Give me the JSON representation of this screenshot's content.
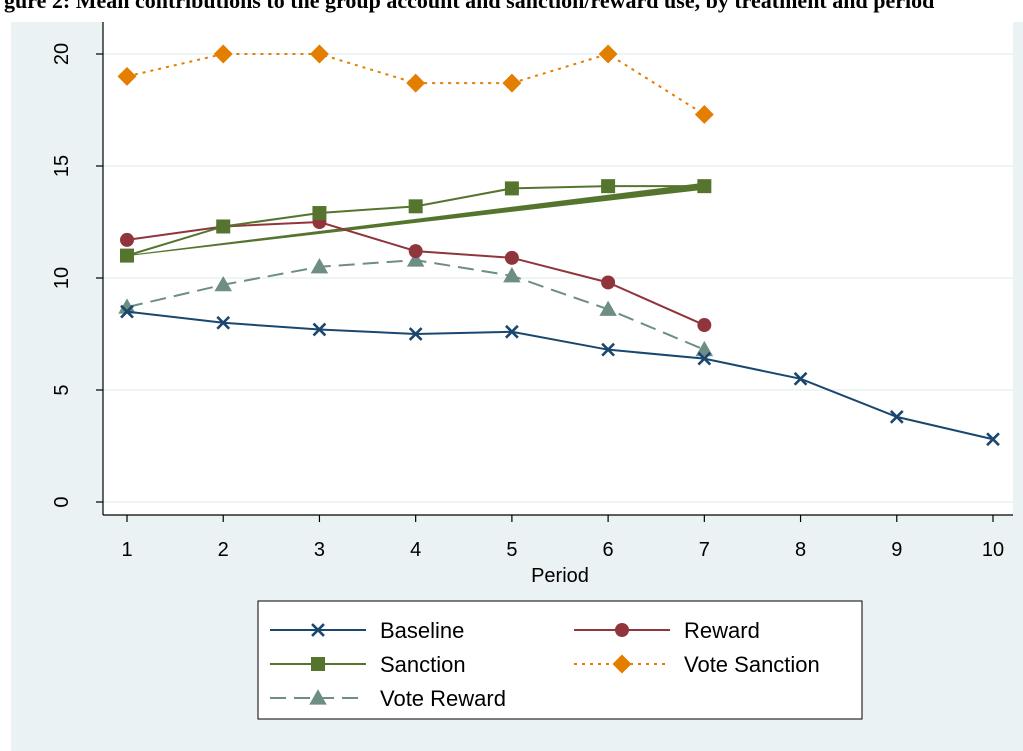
{
  "caption": "gure 2: Mean contributions to the group account and sanction/reward use, by treatment and period",
  "colors": {
    "panel_background": "#eaf2f3",
    "plot_background": "#ffffff",
    "grid": "#eaf2f3",
    "axis": "#000000"
  },
  "chart_data": {
    "type": "line",
    "xlabel": "Period",
    "ylabel": "",
    "xlim": [
      1,
      10
    ],
    "ylim": [
      0,
      20
    ],
    "x_ticks": [
      1,
      2,
      3,
      4,
      5,
      6,
      7,
      8,
      9,
      10
    ],
    "y_ticks": [
      0,
      5,
      10,
      15,
      20
    ],
    "grid": true,
    "legend_placement": "bottom",
    "series": [
      {
        "name": "Baseline",
        "color": "#1a476f",
        "marker": "x",
        "dash": "solid",
        "x": [
          1,
          2,
          3,
          4,
          5,
          6,
          7,
          8,
          9,
          10
        ],
        "values": [
          8.5,
          8.0,
          7.7,
          7.5,
          7.6,
          6.8,
          6.4,
          5.5,
          3.8,
          2.8
        ]
      },
      {
        "name": "Reward",
        "color": "#90353b",
        "marker": "circle",
        "dash": "solid",
        "x": [
          1,
          2,
          3,
          4,
          5,
          6,
          7
        ],
        "values": [
          11.7,
          12.3,
          12.5,
          11.2,
          10.9,
          9.8,
          7.9
        ]
      },
      {
        "name": "Sanction",
        "color": "#55752f",
        "marker": "square",
        "dash": "solid",
        "x": [
          1,
          2,
          3,
          4,
          5,
          6,
          7
        ],
        "values": [
          11.0,
          12.3,
          12.9,
          13.2,
          14.0,
          14.1,
          14.1
        ]
      },
      {
        "name": "Vote Sanction",
        "color": "#e37e00",
        "marker": "diamond",
        "dash": "dot",
        "x": [
          1,
          2,
          3,
          4,
          5,
          6,
          7
        ],
        "values": [
          19.0,
          20.0,
          20.0,
          18.7,
          18.7,
          20.0,
          17.3
        ]
      },
      {
        "name": "Vote Reward",
        "color": "#6e8e84",
        "marker": "triangle",
        "dash": "dash",
        "x": [
          1,
          2,
          3,
          4,
          5,
          6,
          7
        ],
        "values": [
          8.7,
          9.7,
          10.5,
          10.8,
          10.1,
          8.6,
          6.8
        ]
      }
    ],
    "sanction_band": {
      "color": "#55752f",
      "x": [
        1,
        7
      ],
      "values": [
        11.0,
        14.1
      ]
    }
  }
}
